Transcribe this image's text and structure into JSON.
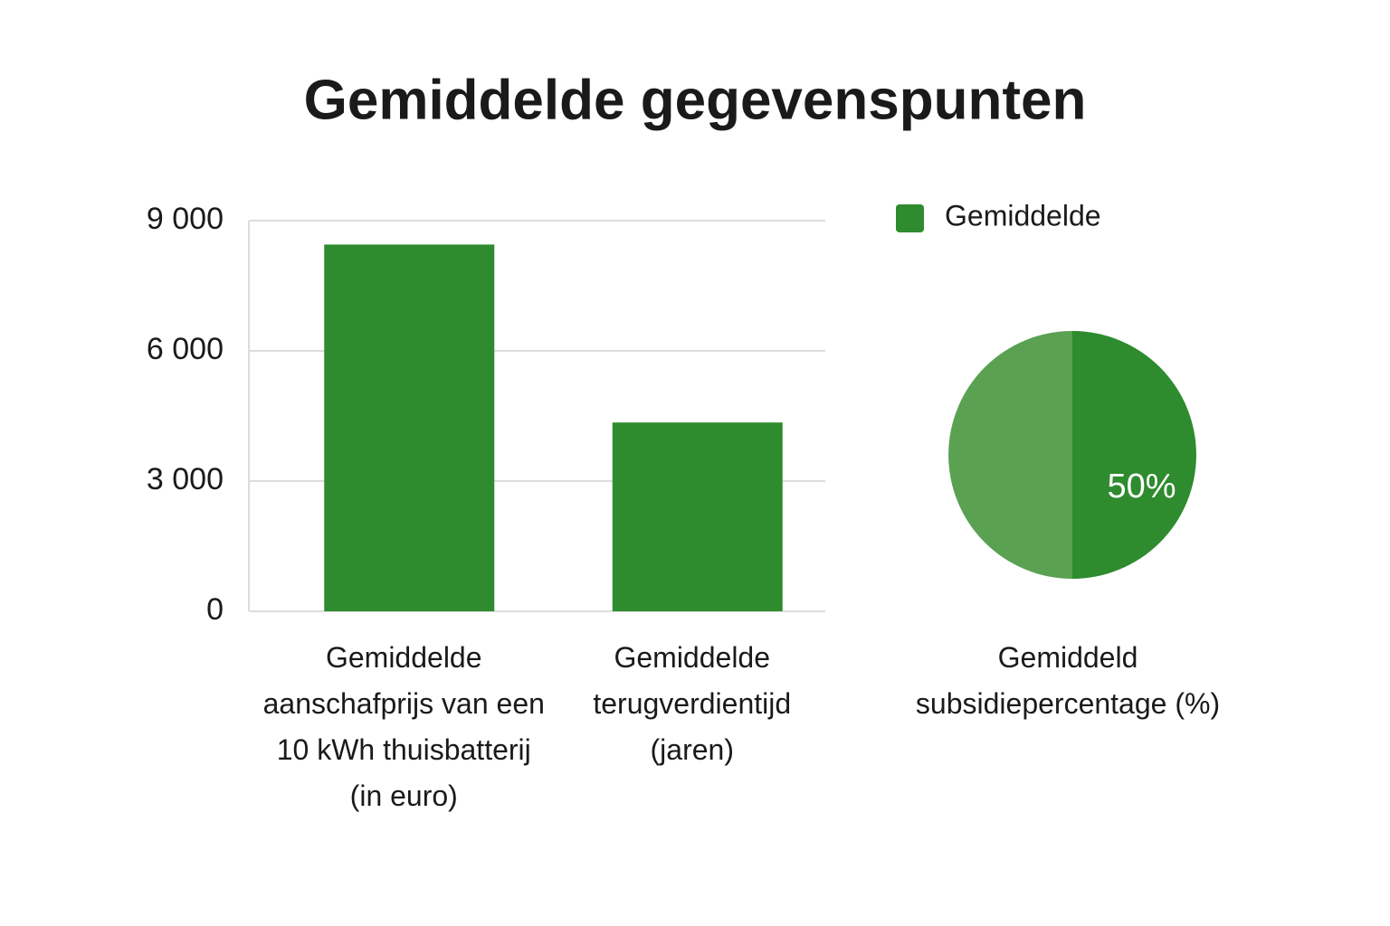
{
  "title": "Gemiddelde gegevenspunten",
  "chart_data": [
    {
      "type": "bar",
      "categories": [
        "Gemiddelde aanschafprijs van een 10 kWh thuisbatterij (in euro)",
        "Gemiddelde terugverdientijd (jaren)"
      ],
      "series": [
        {
          "name": "Gemiddelde",
          "color": "#2e8b2e",
          "values": [
            8450,
            4350
          ]
        }
      ],
      "ylim": [
        0,
        9000
      ],
      "yticks": [
        0,
        {
          "value": 3000,
          "label": "3 000"
        },
        {
          "value": 6000,
          "label": "6 000"
        },
        {
          "value": 9000,
          "label": "9 000"
        }
      ],
      "grid": true,
      "legend": "top-right"
    },
    {
      "type": "pie",
      "categories": [
        "Gemiddeld subsidiepercentage (%)",
        null
      ],
      "values": [
        50,
        50
      ],
      "value_labels": [
        "50%",
        null
      ],
      "colors": [
        "#2e8b2e",
        "#5aa152"
      ]
    }
  ]
}
